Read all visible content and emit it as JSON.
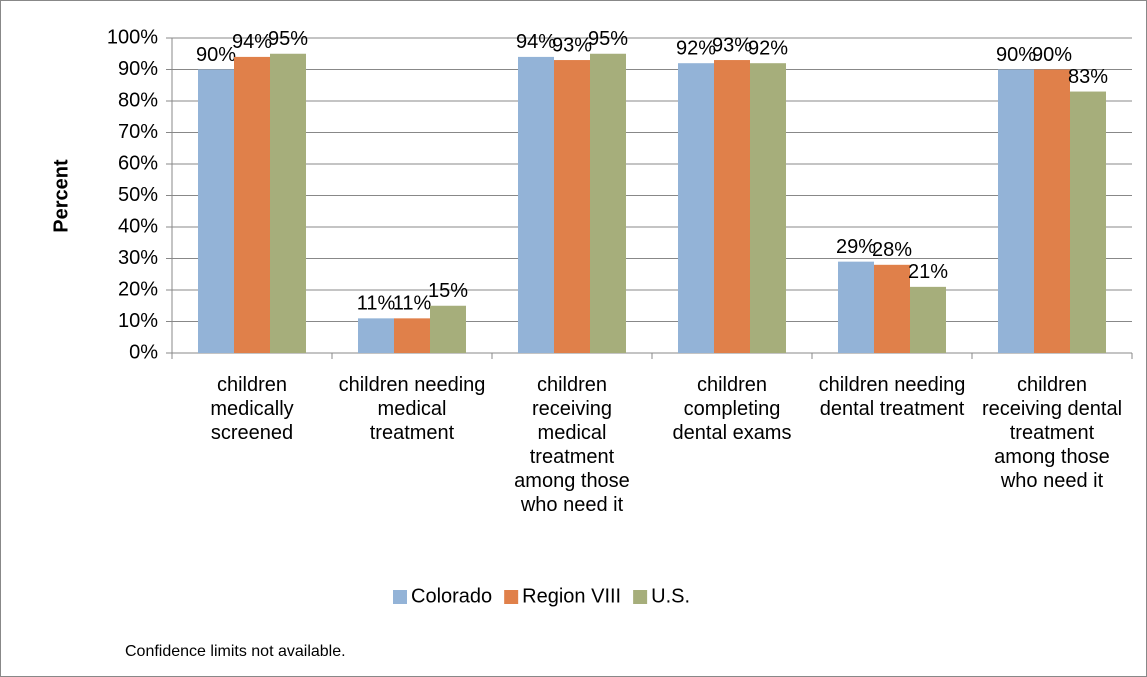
{
  "chart_data": {
    "type": "bar",
    "y_label": "Percent",
    "categories": [
      "children medically screened",
      "children needing medical treatment",
      "children receiving medical treatment among those who need it",
      "children completing dental exams",
      "children needing dental treatment",
      "children receiving dental treatment among those who need it"
    ],
    "series": [
      {
        "name": "Colorado",
        "color": "#93b3d7",
        "values": [
          90,
          11,
          94,
          92,
          29,
          90
        ],
        "value_labels": [
          "90%",
          "11%",
          "94%",
          "92%",
          "29%",
          "90%"
        ]
      },
      {
        "name": "Region VIII",
        "color": "#e0804a",
        "values": [
          94,
          11,
          93,
          93,
          28,
          90
        ],
        "value_labels": [
          "94%",
          "11%",
          "93%",
          "93%",
          "28%",
          "90%"
        ]
      },
      {
        "name": "U.S.",
        "color": "#a6ae7b",
        "values": [
          95,
          15,
          95,
          92,
          21,
          83
        ],
        "value_labels": [
          "95%",
          "15%",
          "95%",
          "92%",
          "21%",
          "83%"
        ]
      }
    ],
    "ylim": [
      0,
      100
    ],
    "yticks": [
      {
        "value": 0,
        "label": "0%"
      },
      {
        "value": 10,
        "label": "10%"
      },
      {
        "value": 20,
        "label": "20%"
      },
      {
        "value": 30,
        "label": "30%"
      },
      {
        "value": 40,
        "label": "40%"
      },
      {
        "value": 50,
        "label": "50%"
      },
      {
        "value": 60,
        "label": "60%"
      },
      {
        "value": 70,
        "label": "70%"
      },
      {
        "value": 80,
        "label": "80%"
      },
      {
        "value": 90,
        "label": "90%"
      },
      {
        "value": 100,
        "label": "100%"
      }
    ],
    "grid": true,
    "legend": "bottom",
    "note": "Confidence limits not available."
  }
}
